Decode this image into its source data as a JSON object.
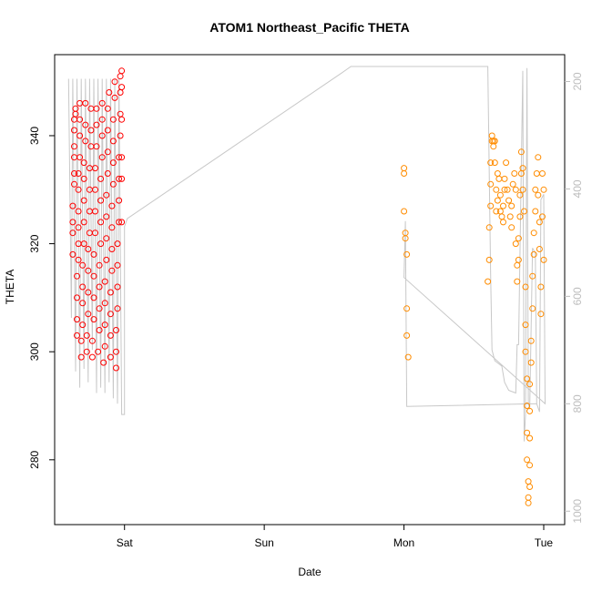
{
  "chart_data": {
    "type": "scatter",
    "title": "ATOM1 Northeast_Pacific THETA",
    "xlabel": "Date",
    "ylabel": "THETA",
    "x_ticks": [
      {
        "label": "Sat",
        "value": 0.0
      },
      {
        "label": "Sun",
        "value": 1.0
      },
      {
        "label": "Mon",
        "value": 2.0
      },
      {
        "label": "Tue",
        "value": 3.0
      }
    ],
    "xlim": [
      -0.5,
      3.15
    ],
    "ylim": [
      268,
      355
    ],
    "y_ticks": [
      280,
      300,
      320,
      340
    ],
    "secondary_axis": {
      "side": "right",
      "values": [
        200,
        400,
        600,
        800,
        1000
      ],
      "lim": [
        150,
        1025
      ],
      "color": "#bdbdbd",
      "inverted": true
    },
    "grid": false,
    "legend": "none",
    "colors": {
      "series_1": "#ff0000",
      "series_2": "#ff8c00",
      "depth_line": "#c8c8c8"
    },
    "series": [
      {
        "color": "#ff0000",
        "points": [
          [
            -0.37,
            318
          ],
          [
            -0.37,
            322
          ],
          [
            -0.37,
            324
          ],
          [
            -0.37,
            327
          ],
          [
            -0.36,
            331
          ],
          [
            -0.36,
            333
          ],
          [
            -0.36,
            336
          ],
          [
            -0.36,
            338
          ],
          [
            -0.36,
            341
          ],
          [
            -0.36,
            343
          ],
          [
            -0.35,
            344
          ],
          [
            -0.35,
            345
          ],
          [
            -0.34,
            303
          ],
          [
            -0.34,
            306
          ],
          [
            -0.34,
            310
          ],
          [
            -0.34,
            314
          ],
          [
            -0.33,
            317
          ],
          [
            -0.33,
            320
          ],
          [
            -0.33,
            323
          ],
          [
            -0.33,
            326
          ],
          [
            -0.33,
            330
          ],
          [
            -0.33,
            333
          ],
          [
            -0.32,
            336
          ],
          [
            -0.32,
            340
          ],
          [
            -0.32,
            343
          ],
          [
            -0.32,
            346
          ],
          [
            -0.31,
            299
          ],
          [
            -0.31,
            302
          ],
          [
            -0.3,
            305
          ],
          [
            -0.3,
            309
          ],
          [
            -0.3,
            312
          ],
          [
            -0.3,
            316
          ],
          [
            -0.29,
            320
          ],
          [
            -0.29,
            324
          ],
          [
            -0.29,
            328
          ],
          [
            -0.29,
            332
          ],
          [
            -0.29,
            335
          ],
          [
            -0.28,
            339
          ],
          [
            -0.28,
            342
          ],
          [
            -0.28,
            346
          ],
          [
            -0.27,
            300
          ],
          [
            -0.27,
            303
          ],
          [
            -0.26,
            307
          ],
          [
            -0.26,
            311
          ],
          [
            -0.26,
            315
          ],
          [
            -0.26,
            319
          ],
          [
            -0.25,
            322
          ],
          [
            -0.25,
            326
          ],
          [
            -0.25,
            330
          ],
          [
            -0.25,
            334
          ],
          [
            -0.24,
            338
          ],
          [
            -0.24,
            341
          ],
          [
            -0.24,
            345
          ],
          [
            -0.23,
            299
          ],
          [
            -0.23,
            302
          ],
          [
            -0.22,
            306
          ],
          [
            -0.22,
            310
          ],
          [
            -0.22,
            314
          ],
          [
            -0.22,
            318
          ],
          [
            -0.21,
            322
          ],
          [
            -0.21,
            326
          ],
          [
            -0.21,
            330
          ],
          [
            -0.21,
            334
          ],
          [
            -0.2,
            338
          ],
          [
            -0.2,
            342
          ],
          [
            -0.2,
            345
          ],
          [
            -0.19,
            300
          ],
          [
            -0.18,
            304
          ],
          [
            -0.18,
            308
          ],
          [
            -0.18,
            312
          ],
          [
            -0.18,
            316
          ],
          [
            -0.17,
            320
          ],
          [
            -0.17,
            324
          ],
          [
            -0.17,
            328
          ],
          [
            -0.17,
            332
          ],
          [
            -0.16,
            336
          ],
          [
            -0.16,
            340
          ],
          [
            -0.16,
            343
          ],
          [
            -0.16,
            346
          ],
          [
            -0.15,
            298
          ],
          [
            -0.14,
            301
          ],
          [
            -0.14,
            305
          ],
          [
            -0.14,
            309
          ],
          [
            -0.14,
            313
          ],
          [
            -0.13,
            317
          ],
          [
            -0.13,
            321
          ],
          [
            -0.13,
            325
          ],
          [
            -0.13,
            329
          ],
          [
            -0.12,
            333
          ],
          [
            -0.12,
            337
          ],
          [
            -0.12,
            341
          ],
          [
            -0.12,
            345
          ],
          [
            -0.11,
            348
          ],
          [
            -0.1,
            299
          ],
          [
            -0.1,
            303
          ],
          [
            -0.1,
            307
          ],
          [
            -0.1,
            311
          ],
          [
            -0.09,
            315
          ],
          [
            -0.09,
            319
          ],
          [
            -0.09,
            323
          ],
          [
            -0.09,
            327
          ],
          [
            -0.08,
            331
          ],
          [
            -0.08,
            335
          ],
          [
            -0.08,
            339
          ],
          [
            -0.08,
            343
          ],
          [
            -0.07,
            347
          ],
          [
            -0.07,
            350
          ],
          [
            -0.06,
            297
          ],
          [
            -0.06,
            300
          ],
          [
            -0.06,
            304
          ],
          [
            -0.05,
            308
          ],
          [
            -0.05,
            312
          ],
          [
            -0.05,
            316
          ],
          [
            -0.05,
            320
          ],
          [
            -0.04,
            324
          ],
          [
            -0.04,
            328
          ],
          [
            -0.04,
            332
          ],
          [
            -0.04,
            336
          ],
          [
            -0.03,
            340
          ],
          [
            -0.03,
            344
          ],
          [
            -0.03,
            348
          ],
          [
            -0.03,
            351
          ],
          [
            -0.02,
            352
          ],
          [
            -0.02,
            324
          ],
          [
            -0.02,
            332
          ],
          [
            -0.02,
            336
          ],
          [
            -0.02,
            343
          ],
          [
            -0.02,
            349
          ]
        ]
      },
      {
        "color": "#ff8c00",
        "points": [
          [
            2.0,
            334
          ],
          [
            2.0,
            333
          ],
          [
            2.0,
            326
          ],
          [
            2.01,
            322
          ],
          [
            2.01,
            321
          ],
          [
            2.02,
            318
          ],
          [
            2.02,
            308
          ],
          [
            2.02,
            303
          ],
          [
            2.03,
            299
          ],
          [
            2.6,
            313
          ],
          [
            2.61,
            317
          ],
          [
            2.61,
            323
          ],
          [
            2.62,
            327
          ],
          [
            2.62,
            331
          ],
          [
            2.62,
            335
          ],
          [
            2.63,
            339
          ],
          [
            2.63,
            340
          ],
          [
            2.64,
            339
          ],
          [
            2.64,
            338
          ],
          [
            2.65,
            339
          ],
          [
            2.65,
            335
          ],
          [
            2.66,
            330
          ],
          [
            2.66,
            326
          ],
          [
            2.67,
            328
          ],
          [
            2.67,
            333
          ],
          [
            2.68,
            332
          ],
          [
            2.69,
            329
          ],
          [
            2.69,
            326
          ],
          [
            2.7,
            325
          ],
          [
            2.71,
            324
          ],
          [
            2.71,
            327
          ],
          [
            2.72,
            330
          ],
          [
            2.72,
            332
          ],
          [
            2.73,
            335
          ],
          [
            2.74,
            330
          ],
          [
            2.75,
            328
          ],
          [
            2.76,
            325
          ],
          [
            2.77,
            323
          ],
          [
            2.77,
            327
          ],
          [
            2.78,
            331
          ],
          [
            2.79,
            333
          ],
          [
            2.8,
            330
          ],
          [
            2.8,
            320
          ],
          [
            2.81,
            316
          ],
          [
            2.81,
            313
          ],
          [
            2.82,
            317
          ],
          [
            2.82,
            321
          ],
          [
            2.83,
            325
          ],
          [
            2.83,
            329
          ],
          [
            2.84,
            333
          ],
          [
            2.84,
            337
          ],
          [
            2.85,
            334
          ],
          [
            2.85,
            330
          ],
          [
            2.86,
            326
          ],
          [
            2.87,
            312
          ],
          [
            2.87,
            305
          ],
          [
            2.87,
            300
          ],
          [
            2.88,
            295
          ],
          [
            2.88,
            290
          ],
          [
            2.88,
            285
          ],
          [
            2.88,
            280
          ],
          [
            2.89,
            276
          ],
          [
            2.89,
            273
          ],
          [
            2.89,
            272
          ],
          [
            2.9,
            275
          ],
          [
            2.9,
            279
          ],
          [
            2.9,
            284
          ],
          [
            2.9,
            289
          ],
          [
            2.9,
            294
          ],
          [
            2.91,
            298
          ],
          [
            2.91,
            302
          ],
          [
            2.92,
            308
          ],
          [
            2.92,
            314
          ],
          [
            2.93,
            318
          ],
          [
            2.93,
            322
          ],
          [
            2.94,
            326
          ],
          [
            2.94,
            330
          ],
          [
            2.95,
            333
          ],
          [
            2.96,
            336
          ],
          [
            2.96,
            329
          ],
          [
            2.97,
            324
          ],
          [
            2.97,
            319
          ],
          [
            2.98,
            312
          ],
          [
            2.98,
            307
          ],
          [
            2.99,
            325
          ],
          [
            2.99,
            333
          ],
          [
            3.0,
            317
          ],
          [
            3.0,
            330
          ]
        ]
      }
    ],
    "depth_line": [
      [
        -0.4,
        195
      ],
      [
        -0.38,
        640
      ],
      [
        -0.37,
        195
      ],
      [
        -0.35,
        740
      ],
      [
        -0.34,
        195
      ],
      [
        -0.32,
        770
      ],
      [
        -0.31,
        195
      ],
      [
        -0.29,
        735
      ],
      [
        -0.28,
        195
      ],
      [
        -0.26,
        760
      ],
      [
        -0.25,
        195
      ],
      [
        -0.23,
        700
      ],
      [
        -0.22,
        195
      ],
      [
        -0.2,
        780
      ],
      [
        -0.19,
        195
      ],
      [
        -0.17,
        770
      ],
      [
        -0.16,
        195
      ],
      [
        -0.14,
        780
      ],
      [
        -0.13,
        195
      ],
      [
        -0.11,
        760
      ],
      [
        -0.1,
        195
      ],
      [
        -0.08,
        790
      ],
      [
        -0.07,
        195
      ],
      [
        -0.05,
        800
      ],
      [
        -0.04,
        195
      ],
      [
        -0.02,
        820
      ],
      [
        0.0,
        820
      ],
      [
        0.0,
        470
      ],
      [
        0.02,
        455
      ],
      [
        1.55,
        185
      ],
      [
        1.62,
        172
      ],
      [
        2.6,
        172
      ],
      [
        2.62,
        560
      ],
      [
        2.63,
        700
      ],
      [
        2.65,
        720
      ],
      [
        2.7,
        730
      ],
      [
        2.72,
        760
      ],
      [
        2.75,
        775
      ],
      [
        2.8,
        780
      ],
      [
        2.81,
        690
      ],
      [
        2.82,
        690
      ],
      [
        2.85,
        180
      ],
      [
        2.86,
        870
      ],
      [
        2.87,
        820
      ],
      [
        2.88,
        175
      ],
      [
        2.89,
        800
      ],
      [
        2.9,
        810
      ],
      [
        2.92,
        510
      ],
      [
        2.94,
        520
      ],
      [
        2.95,
        800
      ],
      [
        2.97,
        815
      ],
      [
        2.98,
        420
      ],
      [
        3.0,
        410
      ],
      [
        3.01,
        800
      ],
      [
        2.0,
        565
      ],
      [
        2.01,
        460
      ],
      [
        2.02,
        805
      ],
      [
        2.95,
        800
      ]
    ]
  }
}
